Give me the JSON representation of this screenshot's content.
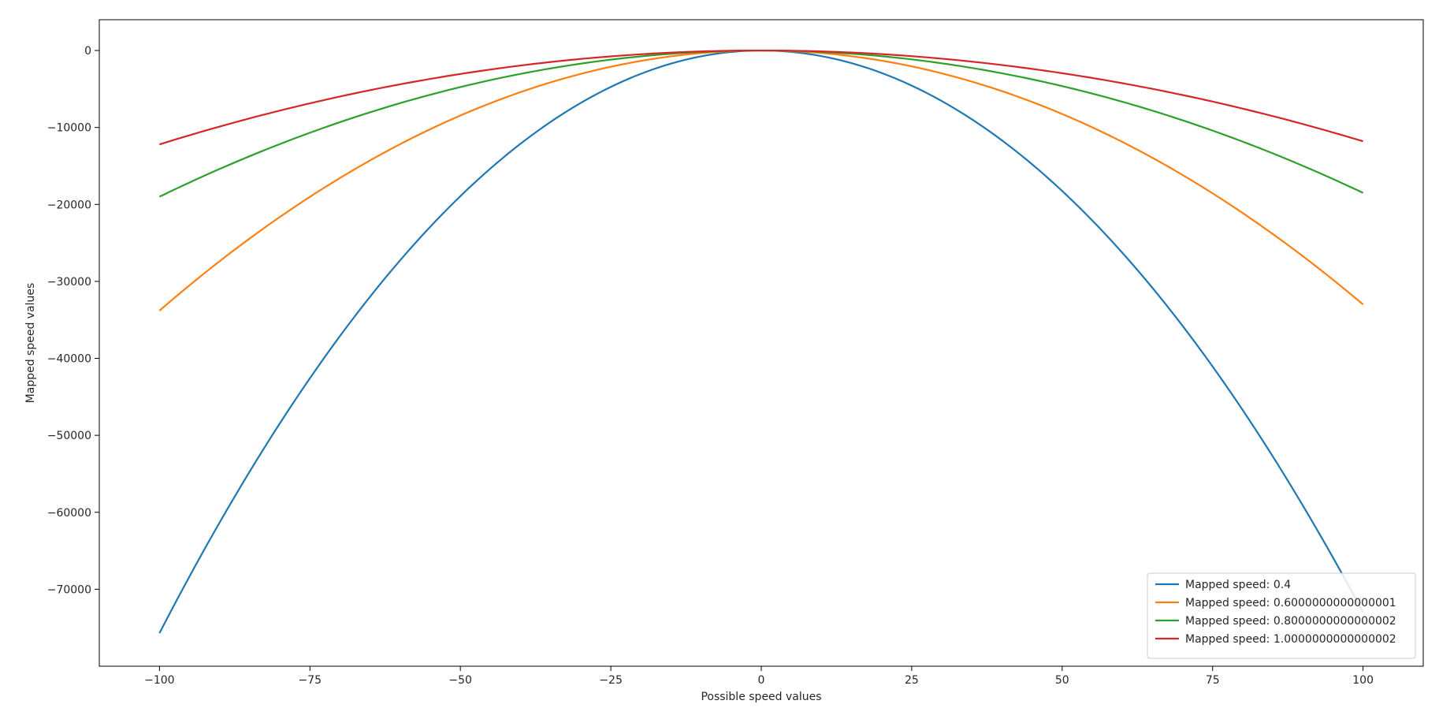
{
  "chart_data": {
    "type": "line",
    "title": "",
    "xlabel": "Possible speed values",
    "ylabel": "Mapped speed values",
    "xlim": [
      -110,
      110
    ],
    "ylim": [
      -80000,
      4000
    ],
    "x_ticks": [
      -100,
      -75,
      -50,
      -25,
      0,
      25,
      50,
      75,
      100
    ],
    "x_tick_labels": [
      "−100",
      "−75",
      "−50",
      "−25",
      "0",
      "25",
      "50",
      "75",
      "100"
    ],
    "y_ticks": [
      0,
      -10000,
      -20000,
      -30000,
      -40000,
      -50000,
      -60000,
      -70000
    ],
    "y_tick_labels": [
      "0",
      "−10000",
      "−20000",
      "−30000",
      "−40000",
      "−50000",
      "−60000",
      "−70000"
    ],
    "grid": false,
    "legend_position": "lower-right",
    "x_range": [
      -100,
      100
    ],
    "vertex_x": 0,
    "series": [
      {
        "name": "Mapped speed: 0.4",
        "color": "#1f77b4",
        "y_at_x_min": -75700,
        "y_at_x_max": -73000
      },
      {
        "name": "Mapped speed: 0.6000000000000001",
        "color": "#ff7f0e",
        "y_at_x_min": -33800,
        "y_at_x_max": -33000
      },
      {
        "name": "Mapped speed: 0.8000000000000002",
        "color": "#2ca02c",
        "y_at_x_min": -19000,
        "y_at_x_max": -18500
      },
      {
        "name": "Mapped speed: 1.0000000000000002",
        "color": "#d62728",
        "y_at_x_min": -12200,
        "y_at_x_max": -11800
      }
    ]
  }
}
